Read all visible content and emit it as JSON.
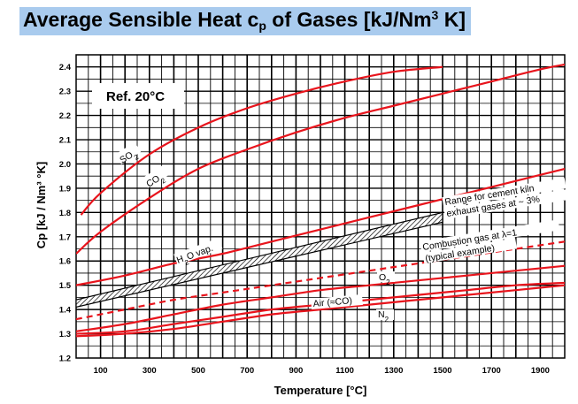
{
  "title": {
    "main": "Average Sensible Heat c",
    "sub": "p",
    "mid": " of Gases [kJ/Nm",
    "sup": "3",
    "end": " K]"
  },
  "chart_data": {
    "type": "line",
    "xlabel": "Temperature [°C]",
    "ylabel": "Cp   [kJ / Nm³ °K]",
    "xlim": [
      0,
      2000
    ],
    "ylim": [
      1.2,
      2.45
    ],
    "xticks": [
      100,
      300,
      500,
      700,
      900,
      1100,
      1300,
      1500,
      1700,
      1900
    ],
    "yticks": [
      1.2,
      1.3,
      1.4,
      1.5,
      1.6,
      1.7,
      1.8,
      1.9,
      2.0,
      2.1,
      2.2,
      2.3,
      2.4
    ],
    "grid": true,
    "reference_note": "Ref. 20°C",
    "line_color": "#e8141c",
    "series": [
      {
        "name": "SO₂",
        "x": [
          20,
          100,
          300,
          500,
          700,
          900,
          1100,
          1300,
          1500
        ],
        "values": [
          1.79,
          1.88,
          2.04,
          2.15,
          2.23,
          2.29,
          2.34,
          2.38,
          2.4
        ]
      },
      {
        "name": "CO₂",
        "x": [
          0,
          100,
          300,
          500,
          700,
          900,
          1100,
          1300,
          1500,
          1700,
          1900,
          2000
        ],
        "values": [
          1.63,
          1.72,
          1.86,
          1.98,
          2.06,
          2.13,
          2.19,
          2.24,
          2.29,
          2.34,
          2.39,
          2.41
        ]
      },
      {
        "name": "H₂O vap.",
        "x": [
          0,
          200,
          400,
          600,
          800,
          1000,
          1200,
          1400,
          1600,
          1800,
          2000
        ],
        "values": [
          1.5,
          1.54,
          1.59,
          1.63,
          1.68,
          1.73,
          1.78,
          1.83,
          1.88,
          1.93,
          1.98
        ]
      },
      {
        "name": "O₂",
        "x": [
          0,
          200,
          400,
          600,
          800,
          1000,
          1200,
          1400,
          1600,
          1800,
          2000
        ],
        "values": [
          1.31,
          1.34,
          1.38,
          1.42,
          1.45,
          1.48,
          1.5,
          1.52,
          1.54,
          1.56,
          1.58
        ]
      },
      {
        "name": "Air (≈CO)",
        "x": [
          0,
          200,
          400,
          600,
          800,
          1000,
          1200,
          1400,
          1600,
          1800,
          2000
        ],
        "values": [
          1.3,
          1.31,
          1.34,
          1.37,
          1.4,
          1.42,
          1.44,
          1.46,
          1.48,
          1.5,
          1.51
        ]
      },
      {
        "name": "N₂",
        "x": [
          0,
          200,
          400,
          600,
          800,
          1000,
          1200,
          1400,
          1600,
          1800,
          2000
        ],
        "values": [
          1.29,
          1.3,
          1.32,
          1.35,
          1.38,
          1.4,
          1.42,
          1.44,
          1.46,
          1.48,
          1.5
        ]
      },
      {
        "name": "Combustion gas at λ=1 (typical example)",
        "dashed": true,
        "x": [
          0,
          200,
          400,
          600,
          800,
          1000,
          1200,
          1400,
          1600,
          1800,
          2000
        ],
        "values": [
          1.36,
          1.4,
          1.44,
          1.47,
          1.5,
          1.53,
          1.56,
          1.59,
          1.62,
          1.65,
          1.68
        ]
      }
    ],
    "band": {
      "name": "Range for cement kiln exhaust gases at ~ 3%",
      "x": [
        0,
        1500
      ],
      "lower": [
        1.41,
        1.76
      ],
      "upper": [
        1.44,
        1.8
      ]
    },
    "labels": {
      "so2_main": "SO",
      "so2_sub": "2",
      "co2_main": "CO",
      "co2_sub": "2",
      "h2o_a": "H",
      "h2o_sub": "2",
      "h2o_b": "O vap.",
      "band_1": "Range for cement kiln",
      "band_2": "exhaust gases at ~ 3%",
      "comb_1": "Combustion gas at λ=1",
      "comb_2": "(typical example)",
      "o2_main": "O",
      "o2_sub": "2",
      "air": "Air (≈CO)",
      "n2_main": "N",
      "n2_sub": "2"
    }
  }
}
